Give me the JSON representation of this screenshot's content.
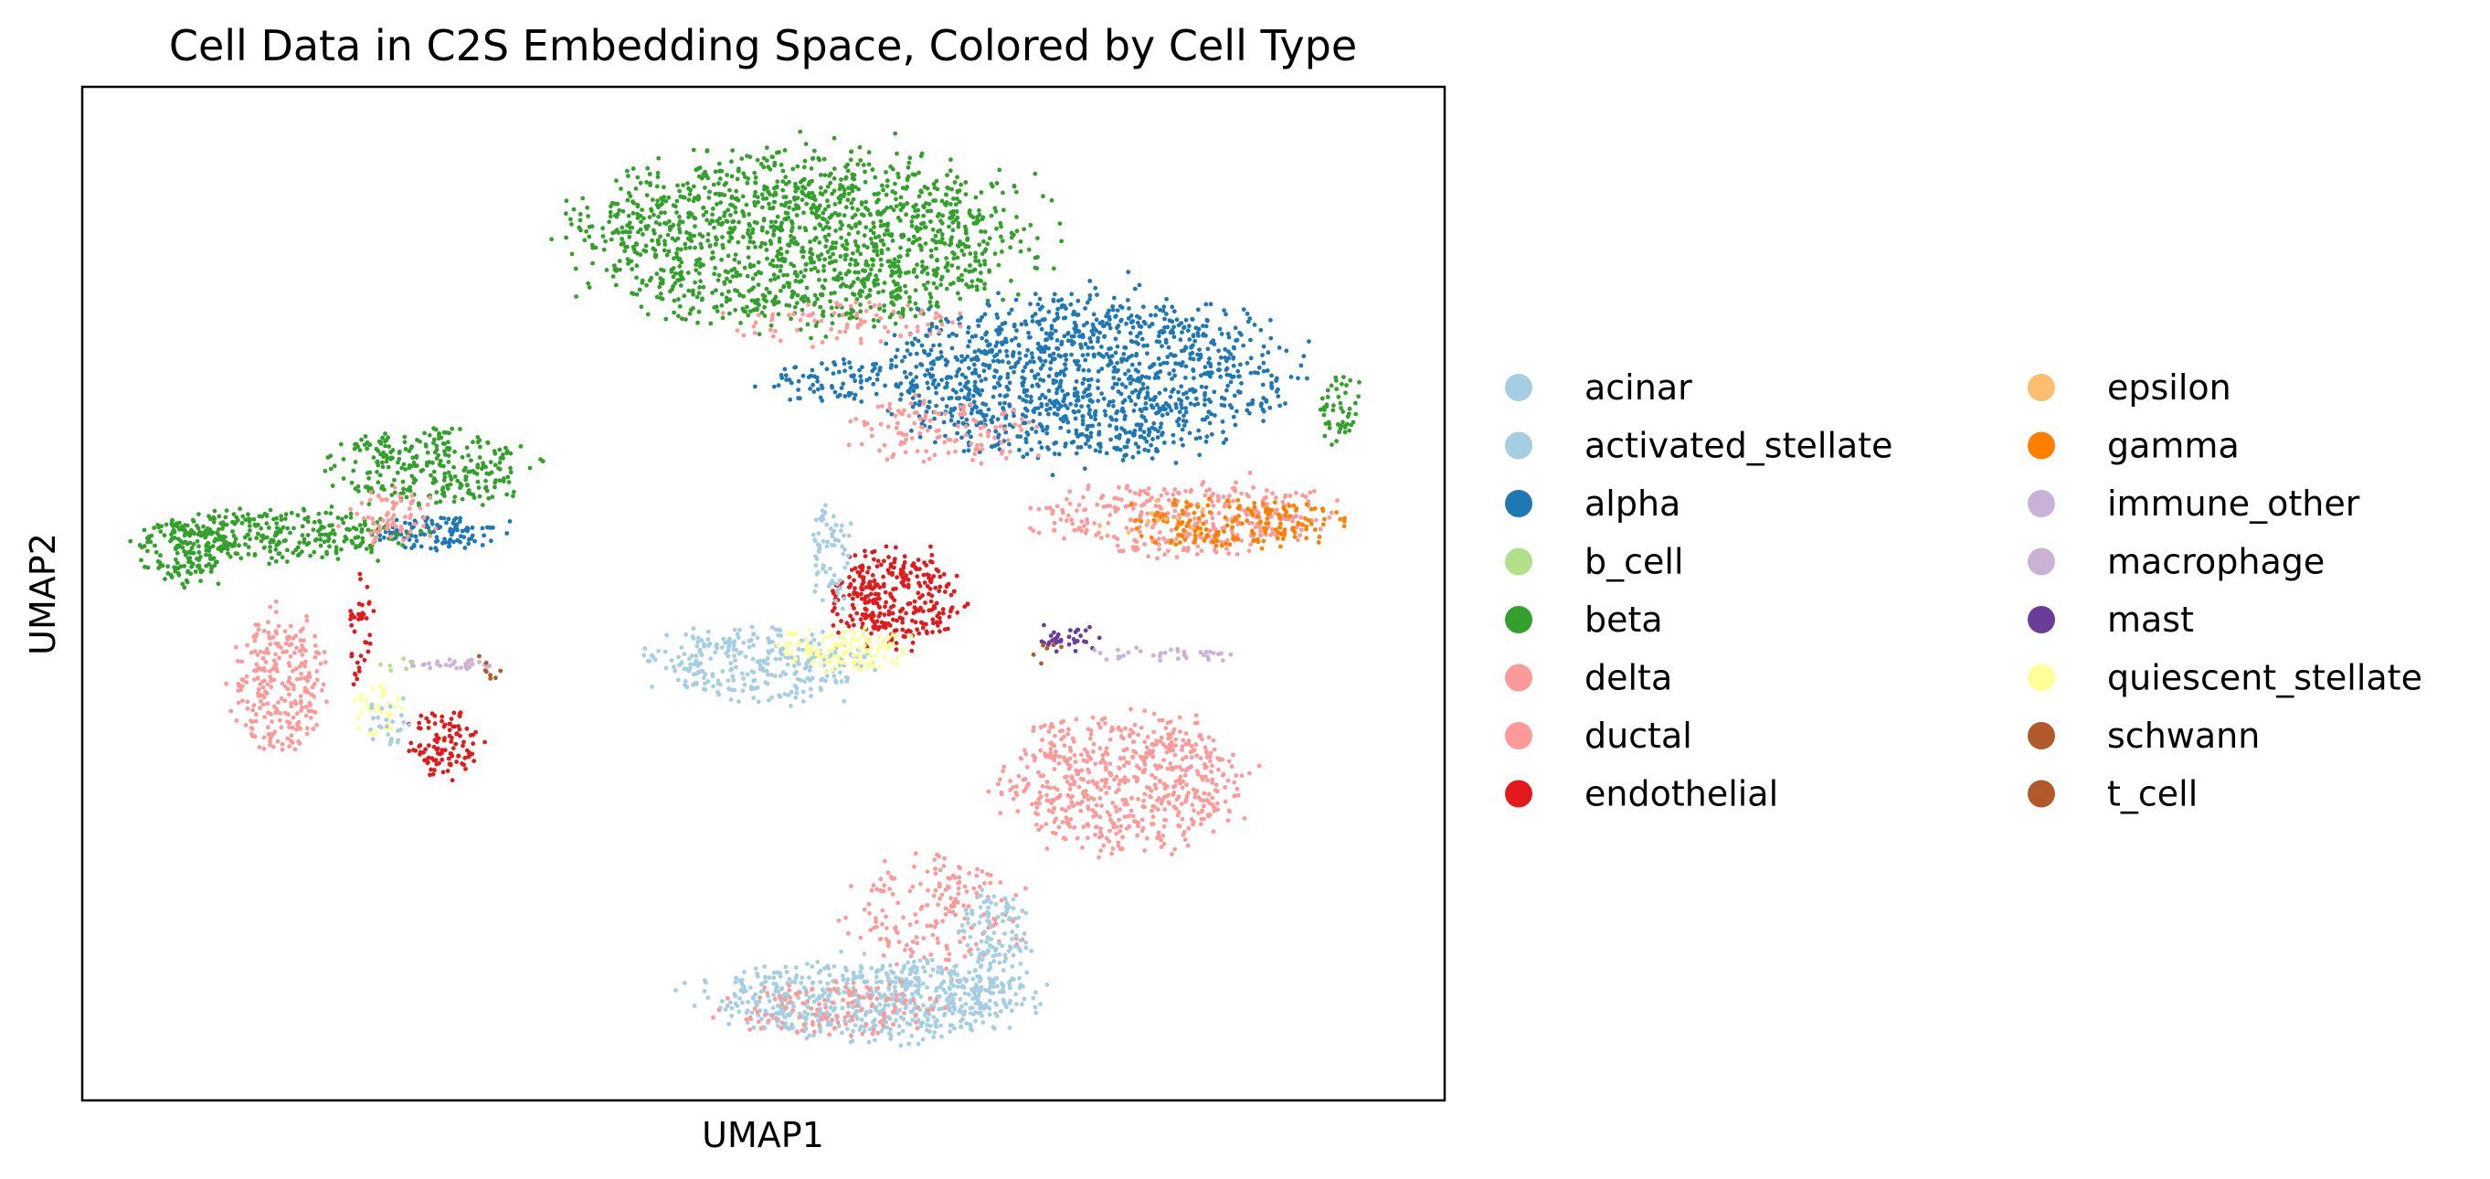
{
  "chart_data": {
    "type": "scatter",
    "title": "Cell Data in C2S Embedding Space, Colored by Cell Type",
    "xlabel": "UMAP1",
    "ylabel": "UMAP2",
    "xlim": [
      0,
      100
    ],
    "ylim": [
      0,
      100
    ],
    "grid": false,
    "axis_ticks": false,
    "legend_position": "right",
    "legend_columns": 2,
    "series": [
      {
        "name": "acinar",
        "color": "#a6cee3"
      },
      {
        "name": "activated_stellate",
        "color": "#a6cee3"
      },
      {
        "name": "alpha",
        "color": "#1f78b4"
      },
      {
        "name": "b_cell",
        "color": "#b2df8a"
      },
      {
        "name": "beta",
        "color": "#33a02c"
      },
      {
        "name": "delta",
        "color": "#fb9a99"
      },
      {
        "name": "ductal",
        "color": "#fb9a99"
      },
      {
        "name": "endothelial",
        "color": "#e31a1c"
      },
      {
        "name": "epsilon",
        "color": "#fdbf6f"
      },
      {
        "name": "gamma",
        "color": "#ff7f00"
      },
      {
        "name": "immune_other",
        "color": "#cab2d6"
      },
      {
        "name": "macrophage",
        "color": "#cab2d6"
      },
      {
        "name": "mast",
        "color": "#6a3d9a"
      },
      {
        "name": "quiescent_stellate",
        "color": "#ffff99"
      },
      {
        "name": "schwann",
        "color": "#b15928"
      },
      {
        "name": "t_cell",
        "color": "#b15928"
      }
    ],
    "clusters": [
      {
        "series": "beta",
        "cx": 53.2,
        "cy": 85.0,
        "rx": 15.5,
        "ry": 8.0,
        "n": 1500
      },
      {
        "series": "alpha",
        "cx": 73.5,
        "cy": 71.5,
        "rx": 13.5,
        "ry": 7.5,
        "n": 1300
      },
      {
        "series": "alpha",
        "cx": 55.0,
        "cy": 71.0,
        "rx": 5.0,
        "ry": 2.0,
        "n": 70
      },
      {
        "series": "delta",
        "cx": 63.0,
        "cy": 66.0,
        "rx": 6.5,
        "ry": 3.0,
        "n": 120
      },
      {
        "series": "beta",
        "cx": 92.3,
        "cy": 68.0,
        "rx": 1.5,
        "ry": 3.5,
        "n": 50
      },
      {
        "series": "ductal",
        "cx": 81.0,
        "cy": 57.5,
        "rx": 10.0,
        "ry": 3.5,
        "n": 350
      },
      {
        "series": "gamma",
        "cx": 84.5,
        "cy": 57.0,
        "rx": 7.0,
        "ry": 2.3,
        "n": 180
      },
      {
        "series": "beta",
        "cx": 25.5,
        "cy": 62.5,
        "rx": 7.0,
        "ry": 3.6,
        "n": 280
      },
      {
        "series": "alpha",
        "cx": 26.0,
        "cy": 56.0,
        "rx": 4.5,
        "ry": 1.6,
        "n": 110
      },
      {
        "series": "beta",
        "cx": 14.5,
        "cy": 55.8,
        "rx": 9.0,
        "ry": 2.3,
        "n": 320
      },
      {
        "series": "delta",
        "cx": 22.5,
        "cy": 57.5,
        "rx": 3.0,
        "ry": 2.5,
        "n": 70
      },
      {
        "series": "beta",
        "cx": 7.5,
        "cy": 54.0,
        "rx": 3.0,
        "ry": 3.0,
        "n": 120
      },
      {
        "series": "delta",
        "cx": 14.5,
        "cy": 41.0,
        "rx": 3.2,
        "ry": 6.5,
        "n": 260
      },
      {
        "series": "endothelial",
        "cx": 26.5,
        "cy": 35.0,
        "rx": 2.4,
        "ry": 3.3,
        "n": 110
      },
      {
        "series": "endothelial",
        "cx": 20.5,
        "cy": 46.0,
        "rx": 0.8,
        "ry": 5.0,
        "n": 40
      },
      {
        "series": "quiescent_stellate",
        "cx": 21.5,
        "cy": 38.5,
        "rx": 1.8,
        "ry": 2.5,
        "n": 40
      },
      {
        "series": "activated_stellate",
        "cx": 22.5,
        "cy": 37.5,
        "rx": 1.5,
        "ry": 2.5,
        "n": 25
      },
      {
        "series": "immune_other",
        "cx": 27.0,
        "cy": 43.0,
        "rx": 3.5,
        "ry": 0.6,
        "n": 30
      },
      {
        "series": "endothelial",
        "cx": 59.5,
        "cy": 49.5,
        "rx": 4.5,
        "ry": 4.5,
        "n": 320
      },
      {
        "series": "acinar",
        "cx": 49.5,
        "cy": 43.0,
        "rx": 7.5,
        "ry": 3.3,
        "n": 300
      },
      {
        "series": "quiescent_stellate",
        "cx": 56.0,
        "cy": 44.5,
        "rx": 4.5,
        "ry": 2.2,
        "n": 130
      },
      {
        "series": "activated_stellate",
        "cx": 55.0,
        "cy": 54.0,
        "rx": 1.4,
        "ry": 5.0,
        "n": 70
      },
      {
        "series": "mast",
        "cx": 72.5,
        "cy": 45.5,
        "rx": 2.0,
        "ry": 1.3,
        "n": 35
      },
      {
        "series": "macrophage",
        "cx": 79.0,
        "cy": 44.0,
        "rx": 5.0,
        "ry": 0.7,
        "n": 35
      },
      {
        "series": "delta",
        "cx": 76.5,
        "cy": 31.5,
        "rx": 8.0,
        "ry": 6.5,
        "n": 620
      },
      {
        "series": "delta",
        "cx": 63.0,
        "cy": 18.5,
        "rx": 6.5,
        "ry": 5.0,
        "n": 180
      },
      {
        "series": "acinar",
        "cx": 58.5,
        "cy": 10.0,
        "rx": 11.0,
        "ry": 3.6,
        "n": 700
      },
      {
        "series": "acinar",
        "cx": 67.0,
        "cy": 16.0,
        "rx": 2.5,
        "ry": 4.5,
        "n": 120
      },
      {
        "series": "ductal",
        "cx": 55.0,
        "cy": 9.0,
        "rx": 8.0,
        "ry": 2.5,
        "n": 130
      },
      {
        "series": "delta",
        "cx": 56.0,
        "cy": 76.5,
        "rx": 8.0,
        "ry": 2.0,
        "n": 80
      },
      {
        "series": "schwann",
        "cx": 30.0,
        "cy": 42.5,
        "rx": 1.5,
        "ry": 1.5,
        "n": 8
      },
      {
        "series": "t_cell",
        "cx": 71.0,
        "cy": 44.0,
        "rx": 1.5,
        "ry": 1.5,
        "n": 6
      },
      {
        "series": "b_cell",
        "cx": 23.0,
        "cy": 43.0,
        "rx": 1.5,
        "ry": 1.0,
        "n": 6
      },
      {
        "series": "epsilon",
        "cx": 78.0,
        "cy": 58.0,
        "rx": 5.0,
        "ry": 2.0,
        "n": 10
      }
    ]
  }
}
